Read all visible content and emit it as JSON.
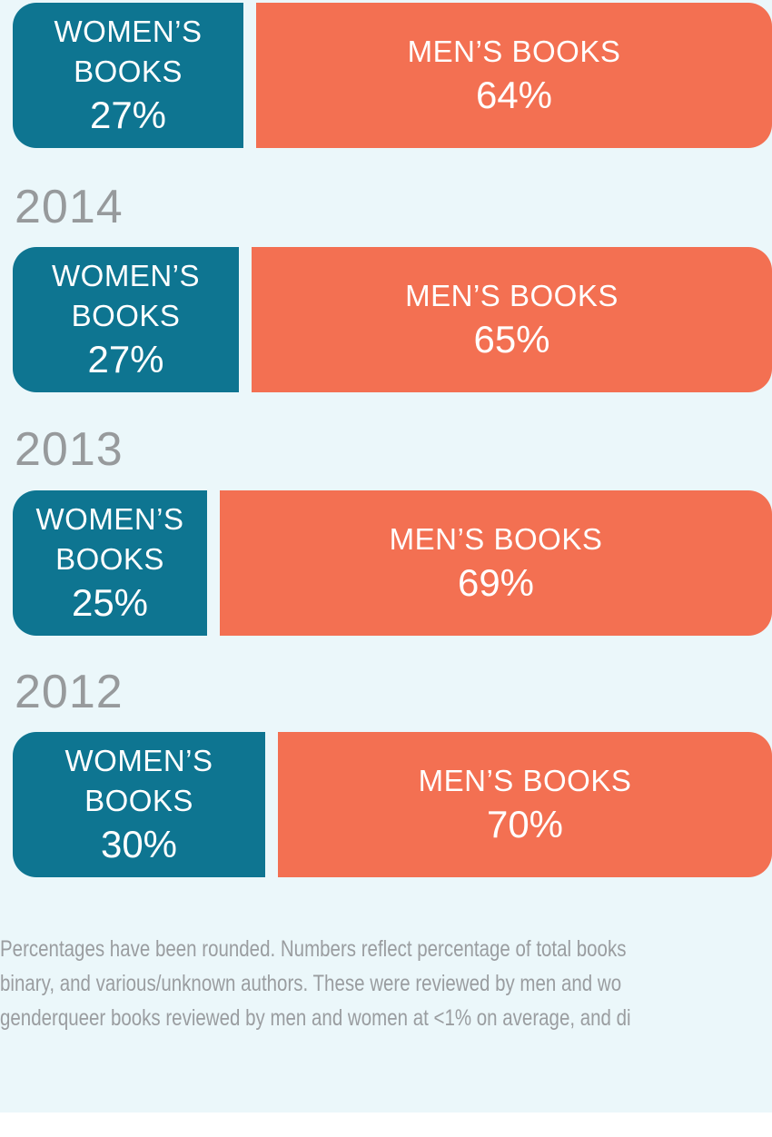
{
  "rows": [
    {
      "women_label_1": "WOMEN’S",
      "women_label_2": "BOOKS",
      "women_value": "27%",
      "men_label": "MEN’S BOOKS",
      "men_value": "64%"
    },
    {
      "year": "2014",
      "women_label_1": "WOMEN’S",
      "women_label_2": "BOOKS",
      "women_value": "27%",
      "men_label": "MEN’S BOOKS",
      "men_value": "65%"
    },
    {
      "year": "2013",
      "women_label_1": "WOMEN’S",
      "women_label_2": "BOOKS",
      "women_value": "25%",
      "men_label": "MEN’S BOOKS",
      "men_value": "69%"
    },
    {
      "year": "2012",
      "women_label_1": "WOMEN’S",
      "women_label_2": "BOOKS",
      "women_value": "30%",
      "men_label": "MEN’S BOOKS",
      "men_value": "70%"
    }
  ],
  "footnote": [
    "Percentages have been rounded. Numbers reflect percentage of total books",
    "binary, and various/unknown authors. These were reviewed by men and wo",
    "genderqueer books reviewed by men and women at <1% on average, and di"
  ]
}
